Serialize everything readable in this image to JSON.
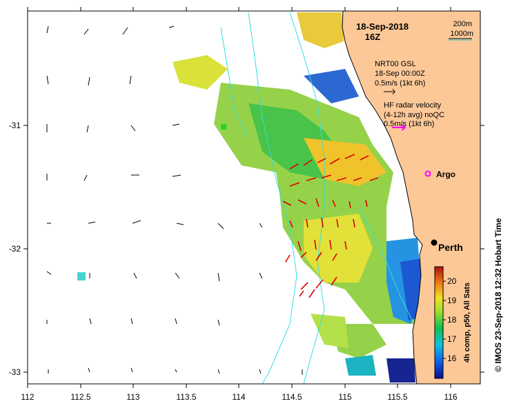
{
  "title": {
    "date": "18-Sep-2018",
    "time": "16Z"
  },
  "scale": {
    "line1": "200m",
    "line2": "1000m",
    "color": "#22c8c8"
  },
  "legend": {
    "gsl_title": "NRT00 GSL",
    "gsl_date": "18-Sep 00:00Z",
    "gsl_scale": "0.5m/s (1kt 6h)",
    "hf_line1": "HF radar velocity",
    "hf_line2": "(4-12h avg) noQC",
    "hf_scale": "0.5m/s (1kt 6h)",
    "hf_color": "#ff00ff"
  },
  "places": {
    "argo": "Argo",
    "perth": "Perth"
  },
  "colorbar": {
    "label": "4h comp, p50, All Sats",
    "ticks": [
      "20",
      "19",
      "18",
      "17",
      "16"
    ]
  },
  "credit": "© IMOS 23-Sep-2018 12:32 Hobart Time",
  "axes": {
    "x_ticks": [
      "112",
      "112.5",
      "113",
      "113.5",
      "114",
      "114.5",
      "115",
      "115.5",
      "116"
    ],
    "y_ticks": [
      "-31",
      "-32",
      "-33"
    ]
  },
  "colors": {
    "land": "#fcc898",
    "bathy": "#33dddd",
    "hf_arrow": "#dd0000"
  }
}
